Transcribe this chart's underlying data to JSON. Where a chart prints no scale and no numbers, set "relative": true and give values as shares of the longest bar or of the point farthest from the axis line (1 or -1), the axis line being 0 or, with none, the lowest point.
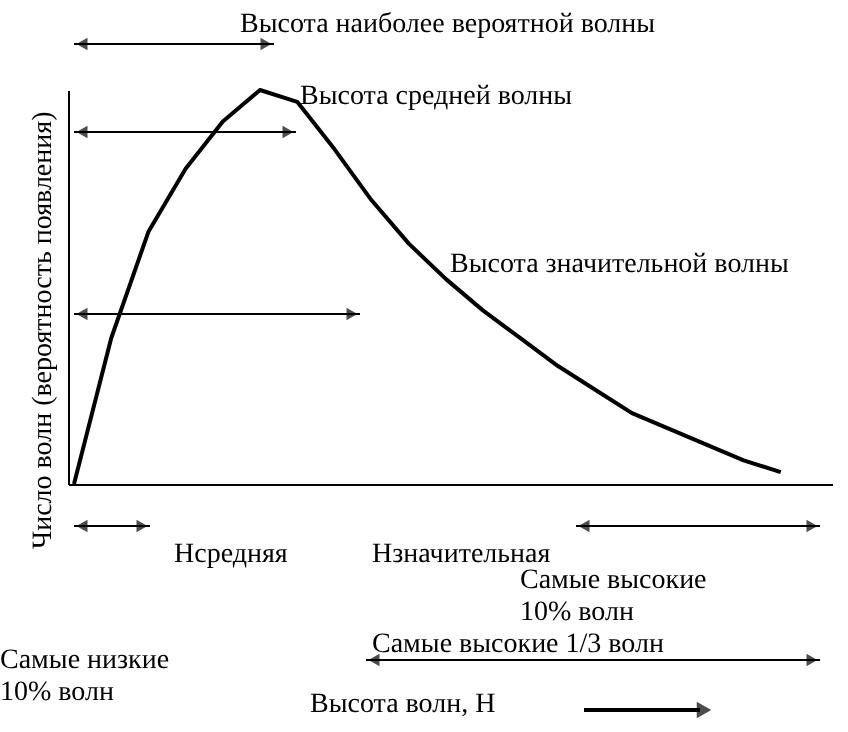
{
  "chart_data": {
    "type": "line",
    "relative": true,
    "color": "#000000",
    "marker": "none",
    "line_style": "solid",
    "categories": [
      null,
      null,
      null,
      null,
      null,
      null,
      null,
      null,
      null,
      null,
      null,
      null,
      null,
      null,
      null,
      null,
      null,
      null,
      null,
      null
    ],
    "values": [
      0,
      0.37,
      0.64,
      0.8,
      0.92,
      1.0,
      0.97,
      0.85,
      0.72,
      0.61,
      0.52,
      0.44,
      0.37,
      0.3,
      0.24,
      0.18,
      0.14,
      0.1,
      0.06,
      0.03
    ],
    "ylabel": "Число волн (вероятность появления)",
    "annotations": [
      "Высота наиболее вероятной волны",
      "Высота средней волны",
      "Высота значительной волны",
      "Hсредняя",
      "Hзначительная",
      "Самые высокие\n10% волн",
      "Самые низкие\n10% волн",
      "Самые высокие 1/3 волн",
      "Высота волн, H"
    ]
  }
}
